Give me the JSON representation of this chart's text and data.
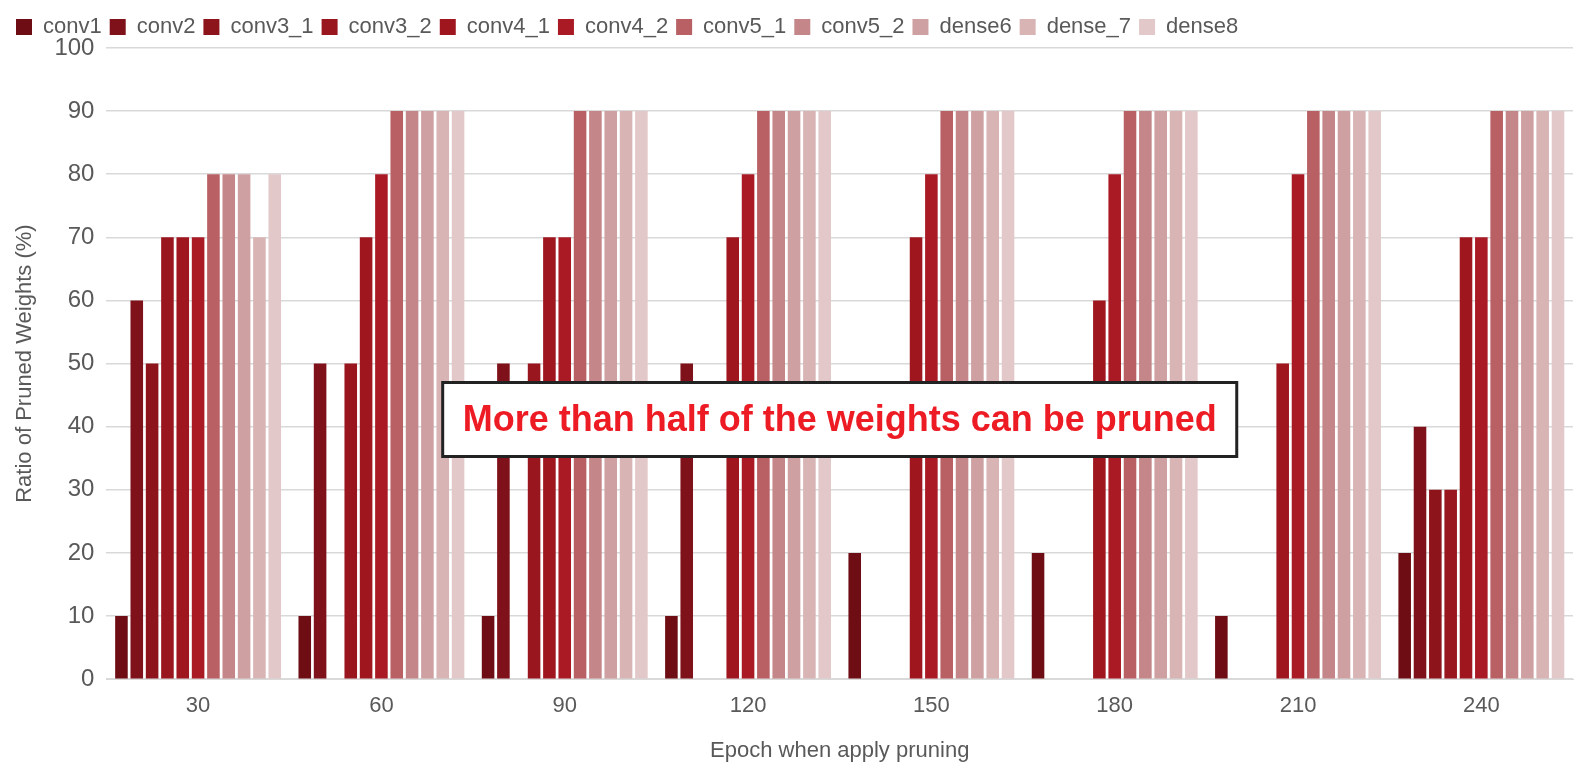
{
  "chart_data": {
    "type": "bar",
    "xlabel": "Epoch when apply pruning",
    "ylabel": "Ratio of Pruned Weights (%)",
    "categories": [
      "30",
      "60",
      "90",
      "120",
      "150",
      "180",
      "210",
      "240"
    ],
    "series": [
      {
        "name": "conv1",
        "color": "#6e0e14",
        "values": [
          10,
          10,
          10,
          10,
          20,
          20,
          10,
          20
        ]
      },
      {
        "name": "conv2",
        "color": "#7f111a",
        "values": [
          60,
          50,
          50,
          50,
          null,
          null,
          null,
          40
        ]
      },
      {
        "name": "conv3_1",
        "color": "#8e141c",
        "values": [
          50,
          null,
          null,
          null,
          null,
          null,
          null,
          30
        ]
      },
      {
        "name": "conv3_2",
        "color": "#9a161f",
        "values": [
          70,
          50,
          50,
          null,
          null,
          null,
          null,
          30
        ]
      },
      {
        "name": "conv4_1",
        "color": "#a0161f",
        "values": [
          70,
          70,
          70,
          70,
          70,
          60,
          50,
          70
        ]
      },
      {
        "name": "conv4_2",
        "color": "#a91a24",
        "values": [
          70,
          80,
          70,
          80,
          80,
          80,
          80,
          70
        ]
      },
      {
        "name": "conv5_1",
        "color": "#b86064",
        "values": [
          80,
          90,
          90,
          90,
          90,
          90,
          90,
          90
        ]
      },
      {
        "name": "conv5_2",
        "color": "#c48688",
        "values": [
          80,
          90,
          90,
          90,
          90,
          90,
          90,
          90
        ]
      },
      {
        "name": "dense6",
        "color": "#cfa0a2",
        "values": [
          80,
          90,
          90,
          90,
          90,
          90,
          90,
          90
        ]
      },
      {
        "name": "dense_7",
        "color": "#d8b4b5",
        "values": [
          70,
          90,
          90,
          90,
          90,
          90,
          90,
          90
        ]
      },
      {
        "name": "dense8",
        "color": "#e3c8c9",
        "values": [
          80,
          90,
          90,
          90,
          90,
          90,
          90,
          90
        ]
      }
    ],
    "ylim": [
      0,
      100
    ],
    "yticks": [
      0,
      10,
      20,
      30,
      40,
      50,
      60,
      70,
      80,
      90,
      100
    ],
    "grid": "y",
    "legend": "top",
    "annotations": [
      "More than half of the weights can be pruned"
    ]
  }
}
